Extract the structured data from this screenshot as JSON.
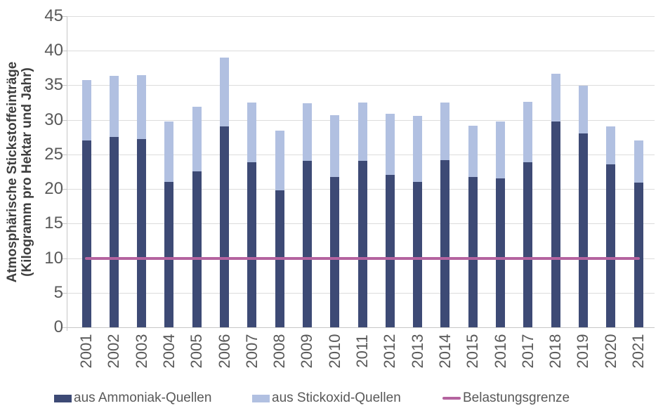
{
  "colors": {
    "ammonia": "#3d4a75",
    "nox": "#b1c0e1",
    "limit_line": "#b4639f",
    "grid": "#dcdcdc",
    "axis": "#c6c6c6",
    "tick_text": "#595959",
    "title_text": "#3e3e3e"
  },
  "y_axis": {
    "title_line1": "Atmosphärische Stickstoffeinträge",
    "title_line2": "(Kilogramm pro Hektar und Jahr)"
  },
  "legend": {
    "items": [
      {
        "label": "aus Ammoniak-Quellen",
        "swatch": "box",
        "color": "#3d4a75"
      },
      {
        "label": "aus Stickoxid-Quellen",
        "swatch": "box",
        "color": "#b1c0e1"
      },
      {
        "label": "Belastungsgrenze",
        "swatch": "line",
        "color": "#b4639f"
      }
    ]
  },
  "chart_data": {
    "type": "bar",
    "stacked": true,
    "title": "",
    "ylabel": "Atmosphärische Stickstoffeinträge (Kilogramm pro Hektar und Jahr)",
    "xlabel": "",
    "ylim": [
      0,
      45
    ],
    "y_ticks": [
      0,
      5,
      10,
      15,
      20,
      25,
      30,
      35,
      40,
      45
    ],
    "grid": true,
    "legend_position": "bottom",
    "categories": [
      "2001",
      "2002",
      "2003",
      "2004",
      "2005",
      "2006",
      "2007",
      "2008",
      "2009",
      "2010",
      "2011",
      "2012",
      "2013",
      "2014",
      "2015",
      "2016",
      "2017",
      "2018",
      "2019",
      "2020",
      "2021"
    ],
    "series": [
      {
        "name": "aus Ammoniak-Quellen",
        "color": "#3d4a75",
        "values": [
          27.0,
          27.5,
          27.2,
          21.0,
          22.6,
          29.1,
          23.9,
          19.8,
          24.1,
          21.7,
          24.1,
          22.0,
          21.0,
          24.2,
          21.7,
          21.5,
          23.9,
          29.8,
          28.0,
          23.6,
          20.9
        ]
      },
      {
        "name": "aus Stickoxid-Quellen",
        "color": "#b1c0e1",
        "values": [
          8.8,
          8.9,
          9.3,
          8.8,
          9.3,
          9.9,
          8.6,
          8.6,
          8.3,
          9.0,
          8.4,
          8.9,
          9.6,
          8.3,
          7.5,
          8.3,
          8.7,
          6.9,
          6.9,
          5.5,
          6.1
        ]
      }
    ],
    "stack_totals": [
      35.8,
      36.4,
      36.5,
      29.8,
      31.9,
      39.0,
      32.5,
      28.4,
      32.4,
      30.7,
      32.5,
      30.9,
      30.6,
      32.5,
      29.2,
      29.8,
      32.6,
      36.7,
      34.9,
      29.1,
      27.0
    ],
    "reference_line": {
      "name": "Belastungsgrenze",
      "value": 10,
      "color": "#b4639f"
    }
  }
}
